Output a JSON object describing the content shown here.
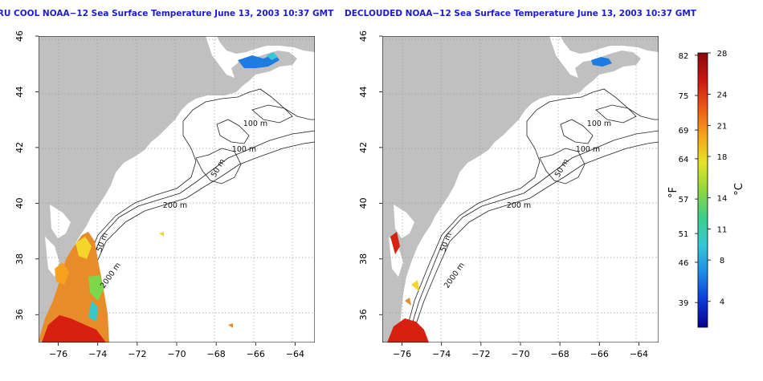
{
  "panels": [
    {
      "title": "RU COOL NOAA−12 Sea Surface Temperature June 13, 2003 10:37 GMT",
      "variant": "raw"
    },
    {
      "title": "DECLOUDED NOAA−12 Sea Surface Temperature June 13, 2003 10:37 GMT",
      "variant": "declouded"
    }
  ],
  "axes": {
    "lon_ticks": [
      "−76",
      "−74",
      "−72",
      "−70",
      "−68",
      "−66",
      "−64"
    ],
    "lat_ticks": [
      "36",
      "38",
      "40",
      "42",
      "44",
      "46"
    ],
    "lon_range": [
      -77,
      -63
    ],
    "lat_range": [
      35,
      46
    ]
  },
  "contour_labels": {
    "c100a": "100 m",
    "c100b": "100 m",
    "c50a": "50 m",
    "c200": "200 m",
    "c50b": "50 m",
    "c2000": "2000 m"
  },
  "colorbar": {
    "f_unit": "°F",
    "c_unit": "°C",
    "f_ticks": [
      "82",
      "75",
      "69",
      "64",
      "57",
      "51",
      "46",
      "39"
    ],
    "c_ticks": [
      "28",
      "24",
      "21",
      "18",
      "14",
      "11",
      "8",
      "4"
    ],
    "f_values": [
      82,
      75,
      69,
      64,
      57,
      51,
      46,
      39
    ],
    "c_values": [
      28,
      24,
      21,
      18,
      14,
      11,
      8,
      4
    ],
    "c_range": [
      1.5,
      28
    ],
    "colors": [
      "#08008f",
      "#0a3cd8",
      "#1e8ce8",
      "#34c8d8",
      "#3ccf8a",
      "#8fd83c",
      "#e6e22a",
      "#f6a21c",
      "#ec5a14",
      "#c81810",
      "#8a0a0a"
    ]
  },
  "colors": {
    "title": "#1b1bd0",
    "land": "#c0c0c0",
    "grid": "#a0a0a0"
  }
}
